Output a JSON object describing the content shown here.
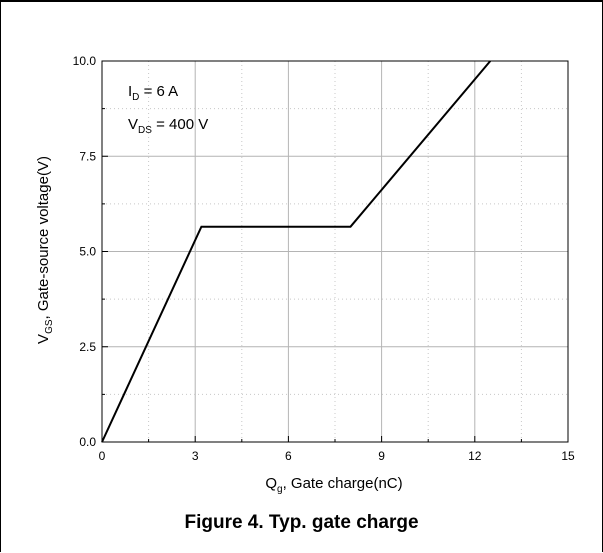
{
  "chart_data": {
    "type": "line",
    "title": "",
    "xlabel": {
      "main": "Q",
      "sub": "g",
      "rest": ", Gate charge(nC)"
    },
    "ylabel": {
      "main": "V",
      "sub": "GS",
      "rest": ", Gate-source voltage(V)"
    },
    "xlim": [
      0,
      15
    ],
    "ylim": [
      0,
      10
    ],
    "xticks": [
      0,
      3,
      6,
      9,
      12,
      15
    ],
    "yticks": [
      0.0,
      2.5,
      5.0,
      7.5,
      10.0
    ],
    "xtick_labels": [
      "0",
      "3",
      "6",
      "9",
      "12",
      "15"
    ],
    "ytick_labels": [
      "0.0",
      "2.5",
      "5.0",
      "7.5",
      "10.0"
    ],
    "grid": true,
    "series": [
      {
        "x": [
          0,
          3.2,
          8.0,
          12.5
        ],
        "y": [
          0,
          5.65,
          5.65,
          10.0
        ]
      }
    ],
    "annotations": [
      {
        "main": "I",
        "sub": "D",
        "rest": " = 6 A"
      },
      {
        "main": "V",
        "sub": "DS",
        "rest": " = 400 V"
      }
    ]
  },
  "caption": "Figure 4. Typ. gate charge"
}
